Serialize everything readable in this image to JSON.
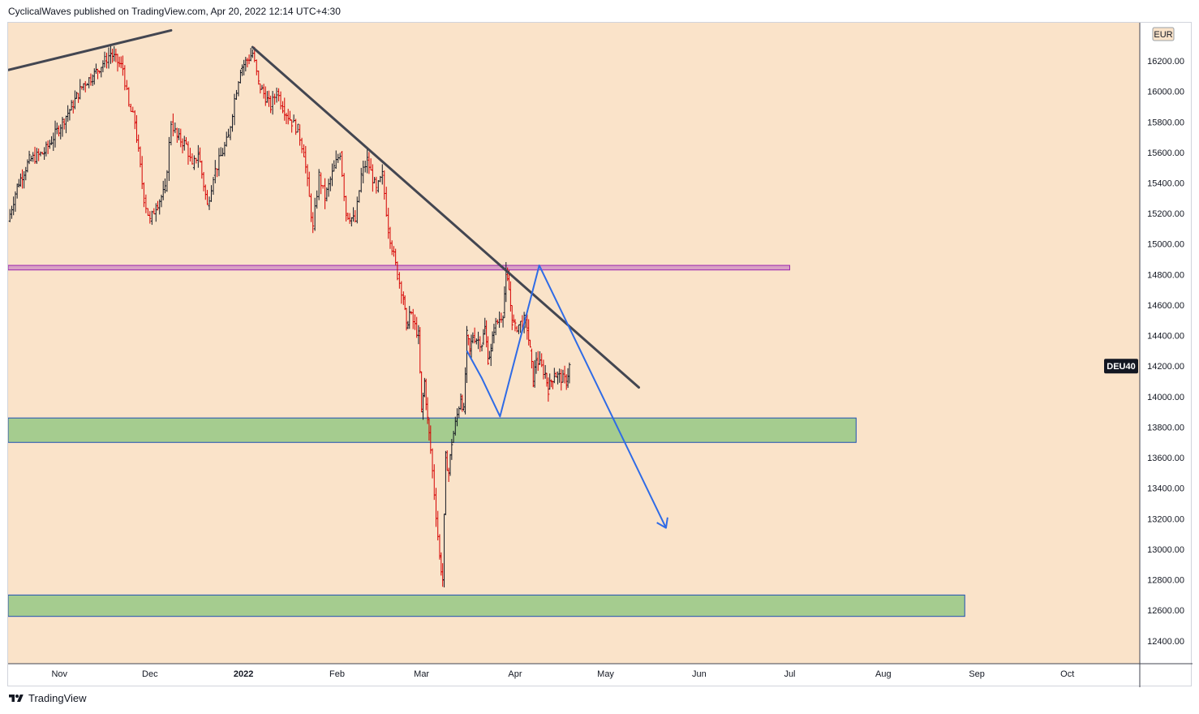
{
  "header": {
    "publisher_line": "CyclicalWaves published on TradingView.com, Apr 20, 2022 12:14 UTC+4:30"
  },
  "footer": {
    "brand": "TradingView"
  },
  "symbol_badge": "DEU40",
  "currency_badge": "EUR",
  "colors": {
    "background": "#fae3c9",
    "candle_up": "#131722",
    "candle_down": "#d50000",
    "trendline": "#434651",
    "forecast": "#2f6be6",
    "resistance_zone_fill": "#d8a0c4",
    "resistance_zone_border": "#9c27b0",
    "support_zone_fill": "#a5cc8f",
    "support_zone_border": "#1e4fb3"
  },
  "chart_data": {
    "type": "candlestick",
    "title": "",
    "ylim": [
      12250,
      16450
    ],
    "y_ticks": [
      12400,
      12600,
      12800,
      13000,
      13200,
      13400,
      13600,
      13800,
      14000,
      14200,
      14400,
      14600,
      14800,
      15000,
      15200,
      15400,
      15600,
      15800,
      16000,
      16200
    ],
    "y_tick_labels": [
      "12400.00",
      "12600.00",
      "12800.00",
      "13000.00",
      "13200.00",
      "13400.00",
      "13600.00",
      "13800.00",
      "14000.00",
      "14200.00",
      "14400.00",
      "14600.00",
      "14800.00",
      "15000.00",
      "15200.00",
      "15400.00",
      "15600.00",
      "15800.00",
      "16000.00",
      "16200.00"
    ],
    "x_range": [
      "2021-10-15",
      "2022-10-25"
    ],
    "x_ticks": [
      {
        "date": "2021-11-01",
        "label": "Nov",
        "bold": false
      },
      {
        "date": "2021-12-01",
        "label": "Dec",
        "bold": false
      },
      {
        "date": "2022-01-01",
        "label": "2022",
        "bold": true
      },
      {
        "date": "2022-02-01",
        "label": "Feb",
        "bold": false
      },
      {
        "date": "2022-03-01",
        "label": "Mar",
        "bold": false
      },
      {
        "date": "2022-04-01",
        "label": "Apr",
        "bold": false
      },
      {
        "date": "2022-05-01",
        "label": "May",
        "bold": false
      },
      {
        "date": "2022-06-01",
        "label": "Jun",
        "bold": false
      },
      {
        "date": "2022-07-01",
        "label": "Jul",
        "bold": false
      },
      {
        "date": "2022-08-01",
        "label": "Aug",
        "bold": false
      },
      {
        "date": "2022-09-01",
        "label": "Sep",
        "bold": false
      },
      {
        "date": "2022-10-01",
        "label": "Oct",
        "bold": false
      }
    ],
    "price_path": [
      [
        "2021-10-15",
        15150
      ],
      [
        "2021-10-18",
        15380
      ],
      [
        "2021-10-22",
        15550
      ],
      [
        "2021-10-27",
        15600
      ],
      [
        "2021-11-02",
        15800
      ],
      [
        "2021-11-05",
        15900
      ],
      [
        "2021-11-09",
        16050
      ],
      [
        "2021-11-12",
        16100
      ],
      [
        "2021-11-16",
        16200
      ],
      [
        "2021-11-18",
        16250
      ],
      [
        "2021-11-22",
        16150
      ],
      [
        "2021-11-24",
        15900
      ],
      [
        "2021-11-26",
        15800
      ],
      [
        "2021-11-29",
        15300
      ],
      [
        "2021-12-01",
        15150
      ],
      [
        "2021-12-03",
        15250
      ],
      [
        "2021-12-06",
        15350
      ],
      [
        "2021-12-08",
        15800
      ],
      [
        "2021-12-10",
        15700
      ],
      [
        "2021-12-13",
        15650
      ],
      [
        "2021-12-15",
        15500
      ],
      [
        "2021-12-17",
        15600
      ],
      [
        "2021-12-20",
        15250
      ],
      [
        "2021-12-22",
        15450
      ],
      [
        "2021-12-27",
        15700
      ],
      [
        "2021-12-29",
        15950
      ],
      [
        "2021-12-31",
        16150
      ],
      [
        "2022-01-04",
        16250
      ],
      [
        "2022-01-06",
        16050
      ],
      [
        "2022-01-10",
        15900
      ],
      [
        "2022-01-12",
        16000
      ],
      [
        "2022-01-14",
        15900
      ],
      [
        "2022-01-17",
        15800
      ],
      [
        "2022-01-19",
        15750
      ],
      [
        "2022-01-21",
        15600
      ],
      [
        "2022-01-24",
        15100
      ],
      [
        "2022-01-26",
        15450
      ],
      [
        "2022-01-28",
        15300
      ],
      [
        "2022-01-31",
        15500
      ],
      [
        "2022-02-02",
        15600
      ],
      [
        "2022-02-04",
        15200
      ],
      [
        "2022-02-07",
        15150
      ],
      [
        "2022-02-09",
        15450
      ],
      [
        "2022-02-11",
        15550
      ],
      [
        "2022-02-14",
        15350
      ],
      [
        "2022-02-16",
        15450
      ],
      [
        "2022-02-18",
        15100
      ],
      [
        "2022-02-21",
        14800
      ],
      [
        "2022-02-23",
        14650
      ],
      [
        "2022-02-24",
        14450
      ],
      [
        "2022-02-25",
        14550
      ],
      [
        "2022-02-28",
        14400
      ],
      [
        "2022-03-01",
        13900
      ],
      [
        "2022-03-02",
        14100
      ],
      [
        "2022-03-03",
        13850
      ],
      [
        "2022-03-04",
        13650
      ],
      [
        "2022-03-07",
        12950
      ],
      [
        "2022-03-08",
        12800
      ],
      [
        "2022-03-09",
        13600
      ],
      [
        "2022-03-10",
        13500
      ],
      [
        "2022-03-11",
        13700
      ],
      [
        "2022-03-14",
        14000
      ],
      [
        "2022-03-15",
        13900
      ],
      [
        "2022-03-16",
        14400
      ],
      [
        "2022-03-17",
        14300
      ],
      [
        "2022-03-18",
        14400
      ],
      [
        "2022-03-21",
        14350
      ],
      [
        "2022-03-22",
        14450
      ],
      [
        "2022-03-23",
        14250
      ],
      [
        "2022-03-24",
        14300
      ],
      [
        "2022-03-25",
        14450
      ],
      [
        "2022-03-28",
        14550
      ],
      [
        "2022-03-29",
        14800
      ],
      [
        "2022-03-30",
        14700
      ],
      [
        "2022-03-31",
        14500
      ],
      [
        "2022-04-01",
        14450
      ],
      [
        "2022-04-04",
        14500
      ],
      [
        "2022-04-05",
        14450
      ],
      [
        "2022-04-06",
        14300
      ],
      [
        "2022-04-07",
        14100
      ],
      [
        "2022-04-08",
        14250
      ],
      [
        "2022-04-11",
        14150
      ],
      [
        "2022-04-12",
        14050
      ],
      [
        "2022-04-13",
        14100
      ],
      [
        "2022-04-14",
        14150
      ],
      [
        "2022-04-18",
        14100
      ],
      [
        "2022-04-19",
        14200
      ]
    ],
    "annotations": {
      "trendline_top": {
        "from": [
          "2021-10-15",
          16140
        ],
        "to": [
          "2021-12-08",
          16400
        ]
      },
      "trendline_down": {
        "from": [
          "2022-01-04",
          16290
        ],
        "to": [
          "2022-05-12",
          14060
        ]
      },
      "resistance_zone": {
        "x": [
          "2021-10-15",
          "2022-07-01"
        ],
        "y": [
          14830,
          14860
        ]
      },
      "support_zone_upper": {
        "x": [
          "2021-10-15",
          "2022-07-23"
        ],
        "y": [
          13700,
          13860
        ]
      },
      "support_zone_lower": {
        "x": [
          "2021-10-15",
          "2022-08-28"
        ],
        "y": [
          12560,
          12700
        ]
      },
      "forecast_path": [
        [
          "2022-03-16",
          14300
        ],
        [
          "2022-03-21",
          14120
        ],
        [
          "2022-03-27",
          13870
        ],
        [
          "2022-04-09",
          14860
        ],
        [
          "2022-05-21",
          13140
        ]
      ]
    }
  }
}
